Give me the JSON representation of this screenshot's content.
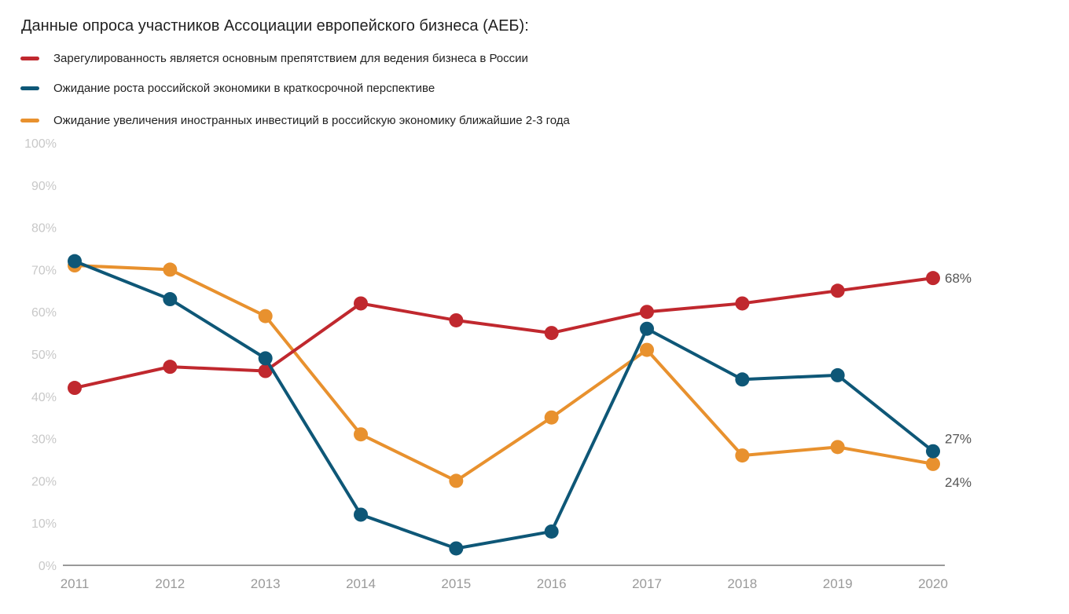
{
  "title": "Данные опроса участников Ассоциации европейского бизнеса (АЕБ):",
  "chart_data": {
    "type": "line",
    "title": "Данные опроса участников Ассоциации европейского бизнеса (АЕБ):",
    "x": [
      "2011",
      "2012",
      "2013",
      "2014",
      "2015",
      "2016",
      "2017",
      "2018",
      "2019",
      "2020"
    ],
    "ylim": [
      0,
      100
    ],
    "yticks": [
      "0%",
      "10%",
      "20%",
      "30%",
      "40%",
      "50%",
      "60%",
      "70%",
      "80%",
      "90%",
      "100%"
    ],
    "grid": false,
    "legend_position": "top-left",
    "series": [
      {
        "name": "Зарегулированность является основным препятствием для ведения бизнеса в России",
        "color": "#c0282e",
        "values": [
          42,
          47,
          46,
          62,
          58,
          55,
          60,
          62,
          65,
          68
        ],
        "end_label": "68%"
      },
      {
        "name": "Ожидание роста российской экономики в краткосрочной перспективе",
        "color": "#0e5777",
        "values": [
          72,
          63,
          49,
          12,
          4,
          8,
          56,
          44,
          45,
          27
        ],
        "end_label": "27%"
      },
      {
        "name": "Ожидание увеличения иностранных инвестиций в российскую экономику ближайшие 2-3 года",
        "color": "#e8912e",
        "values": [
          71,
          70,
          59,
          31,
          20,
          35,
          51,
          26,
          28,
          24
        ],
        "end_label": "24%"
      }
    ]
  }
}
